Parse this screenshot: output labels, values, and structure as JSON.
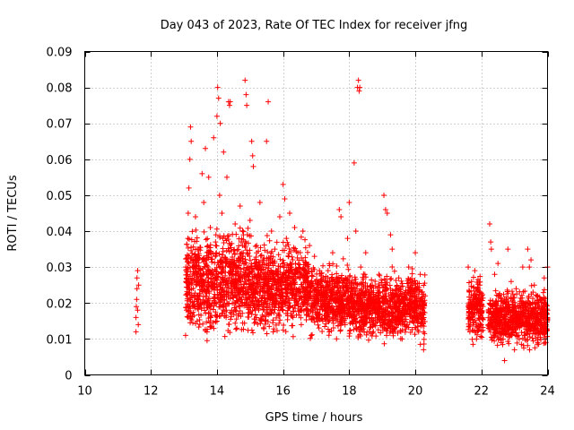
{
  "chart_data": {
    "type": "scatter",
    "title": "Day 043 of 2023, Rate Of TEC Index for receiver jfng",
    "xlabel": "GPS time / hours",
    "ylabel": "ROTI / TECUs",
    "xlim": [
      10,
      24
    ],
    "ylim": [
      0,
      0.09
    ],
    "xticks": [
      10,
      12,
      14,
      16,
      18,
      20,
      22,
      24
    ],
    "xtick_labels": [
      "10",
      "12",
      "14",
      "16",
      "18",
      "20",
      "22",
      "24"
    ],
    "yticks": [
      0,
      0.01,
      0.02,
      0.03,
      0.04,
      0.05,
      0.06,
      0.07,
      0.08,
      0.09
    ],
    "ytick_labels": [
      "0",
      "0.01",
      "0.02",
      "0.03",
      "0.04",
      "0.05",
      "0.06",
      "0.07",
      "0.08",
      "0.09"
    ],
    "grid": true,
    "marker": "+",
    "color": "#ff0000",
    "series": [
      {
        "name": "ROTI",
        "points": [
          [
            11.55,
            0.012
          ],
          [
            11.55,
            0.016
          ],
          [
            11.56,
            0.019
          ],
          [
            11.57,
            0.021
          ],
          [
            11.58,
            0.024
          ],
          [
            11.58,
            0.027
          ],
          [
            11.6,
            0.029
          ],
          [
            11.6,
            0.018
          ],
          [
            11.62,
            0.014
          ],
          [
            11.63,
            0.025
          ],
          [
            13.05,
            0.011
          ],
          [
            13.08,
            0.018
          ],
          [
            13.1,
            0.026
          ],
          [
            13.12,
            0.038
          ],
          [
            13.13,
            0.045
          ],
          [
            13.15,
            0.052
          ],
          [
            13.18,
            0.06
          ],
          [
            13.2,
            0.069
          ],
          [
            13.22,
            0.065
          ],
          [
            13.25,
            0.03
          ],
          [
            13.3,
            0.022
          ],
          [
            13.35,
            0.044
          ],
          [
            13.4,
            0.015
          ],
          [
            13.45,
            0.035
          ],
          [
            13.5,
            0.028
          ],
          [
            13.55,
            0.056
          ],
          [
            13.6,
            0.048
          ],
          [
            13.65,
            0.063
          ],
          [
            13.7,
            0.012
          ],
          [
            13.75,
            0.055
          ],
          [
            13.8,
            0.041
          ],
          [
            13.85,
            0.02
          ],
          [
            13.9,
            0.066
          ],
          [
            13.95,
            0.033
          ],
          [
            14.0,
            0.072
          ],
          [
            14.02,
            0.08
          ],
          [
            14.05,
            0.077
          ],
          [
            14.08,
            0.05
          ],
          [
            14.1,
            0.07
          ],
          [
            14.12,
            0.025
          ],
          [
            14.15,
            0.045
          ],
          [
            14.2,
            0.062
          ],
          [
            14.25,
            0.038
          ],
          [
            14.3,
            0.055
          ],
          [
            14.35,
            0.076
          ],
          [
            14.38,
            0.075
          ],
          [
            14.4,
            0.076
          ],
          [
            14.45,
            0.018
          ],
          [
            14.5,
            0.031
          ],
          [
            14.55,
            0.042
          ],
          [
            14.6,
            0.013
          ],
          [
            14.65,
            0.028
          ],
          [
            14.7,
            0.047
          ],
          [
            14.75,
            0.021
          ],
          [
            14.8,
            0.039
          ],
          [
            14.85,
            0.082
          ],
          [
            14.88,
            0.078
          ],
          [
            14.9,
            0.075
          ],
          [
            14.95,
            0.03
          ],
          [
            15.0,
            0.043
          ],
          [
            15.05,
            0.065
          ],
          [
            15.08,
            0.061
          ],
          [
            15.1,
            0.058
          ],
          [
            15.15,
            0.024
          ],
          [
            15.2,
            0.036
          ],
          [
            15.25,
            0.019
          ],
          [
            15.3,
            0.048
          ],
          [
            15.35,
            0.015
          ],
          [
            15.4,
            0.032
          ],
          [
            15.45,
            0.027
          ],
          [
            15.5,
            0.065
          ],
          [
            15.55,
            0.076
          ],
          [
            15.6,
            0.022
          ],
          [
            15.65,
            0.04
          ],
          [
            15.7,
            0.012
          ],
          [
            15.75,
            0.035
          ],
          [
            15.8,
            0.029
          ],
          [
            15.85,
            0.017
          ],
          [
            15.9,
            0.044
          ],
          [
            15.95,
            0.025
          ],
          [
            16.0,
            0.053
          ],
          [
            16.05,
            0.049
          ],
          [
            16.1,
            0.038
          ],
          [
            16.15,
            0.02
          ],
          [
            16.2,
            0.045
          ],
          [
            16.25,
            0.03
          ],
          [
            16.3,
            0.016
          ],
          [
            16.35,
            0.041
          ],
          [
            16.4,
            0.022
          ],
          [
            16.45,
            0.034
          ],
          [
            16.5,
            0.027
          ],
          [
            16.55,
            0.014
          ],
          [
            16.6,
            0.04
          ],
          [
            16.65,
            0.023
          ],
          [
            16.7,
            0.031
          ],
          [
            16.75,
            0.018
          ],
          [
            16.8,
            0.036
          ],
          [
            16.85,
            0.011
          ],
          [
            16.9,
            0.025
          ],
          [
            16.95,
            0.033
          ],
          [
            17.0,
            0.02
          ],
          [
            17.1,
            0.029
          ],
          [
            17.2,
            0.015
          ],
          [
            17.3,
            0.026
          ],
          [
            17.4,
            0.012
          ],
          [
            17.5,
            0.034
          ],
          [
            17.6,
            0.02
          ],
          [
            17.7,
            0.046
          ],
          [
            17.75,
            0.044
          ],
          [
            17.8,
            0.018
          ],
          [
            17.9,
            0.027
          ],
          [
            17.95,
            0.038
          ],
          [
            18.0,
            0.048
          ],
          [
            18.05,
            0.022
          ],
          [
            18.1,
            0.015
          ],
          [
            18.15,
            0.059
          ],
          [
            18.2,
            0.04
          ],
          [
            18.25,
            0.08
          ],
          [
            18.28,
            0.082
          ],
          [
            18.3,
            0.079
          ],
          [
            18.32,
            0.08
          ],
          [
            18.35,
            0.03
          ],
          [
            18.4,
            0.019
          ],
          [
            18.5,
            0.034
          ],
          [
            18.6,
            0.012
          ],
          [
            18.7,
            0.025
          ],
          [
            18.8,
            0.017
          ],
          [
            18.9,
            0.028
          ],
          [
            19.0,
            0.014
          ],
          [
            19.05,
            0.05
          ],
          [
            19.1,
            0.046
          ],
          [
            19.15,
            0.045
          ],
          [
            19.2,
            0.022
          ],
          [
            19.25,
            0.039
          ],
          [
            19.3,
            0.035
          ],
          [
            19.4,
            0.015
          ],
          [
            19.5,
            0.027
          ],
          [
            19.6,
            0.01
          ],
          [
            19.7,
            0.021
          ],
          [
            19.8,
            0.03
          ],
          [
            19.9,
            0.016
          ],
          [
            20.0,
            0.034
          ],
          [
            20.05,
            0.024
          ],
          [
            20.1,
            0.012
          ],
          [
            20.15,
            0.028
          ],
          [
            20.2,
            0.019
          ],
          [
            20.25,
            0.007
          ],
          [
            20.3,
            0.022
          ],
          [
            21.6,
            0.03
          ],
          [
            21.62,
            0.02
          ],
          [
            21.65,
            0.012
          ],
          [
            21.7,
            0.026
          ],
          [
            21.72,
            0.016
          ],
          [
            21.75,
            0.022
          ],
          [
            21.8,
            0.029
          ],
          [
            21.85,
            0.01
          ],
          [
            21.9,
            0.018
          ],
          [
            21.95,
            0.025
          ],
          [
            22.0,
            0.014
          ],
          [
            22.25,
            0.042
          ],
          [
            22.28,
            0.037
          ],
          [
            22.3,
            0.035
          ],
          [
            22.35,
            0.019
          ],
          [
            22.4,
            0.028
          ],
          [
            22.45,
            0.012
          ],
          [
            22.5,
            0.031
          ],
          [
            22.55,
            0.022
          ],
          [
            22.6,
            0.009
          ],
          [
            22.65,
            0.016
          ],
          [
            22.7,
            0.004
          ],
          [
            22.75,
            0.021
          ],
          [
            22.8,
            0.035
          ],
          [
            22.85,
            0.013
          ],
          [
            22.9,
            0.026
          ],
          [
            22.95,
            0.018
          ],
          [
            23.0,
            0.007
          ],
          [
            23.05,
            0.024
          ],
          [
            23.1,
            0.015
          ],
          [
            23.2,
            0.02
          ],
          [
            23.25,
            0.03
          ],
          [
            23.3,
            0.011
          ],
          [
            23.4,
            0.035
          ],
          [
            23.45,
            0.03
          ],
          [
            23.5,
            0.032
          ],
          [
            23.55,
            0.017
          ],
          [
            23.6,
            0.025
          ],
          [
            23.7,
            0.009
          ],
          [
            23.8,
            0.021
          ],
          [
            23.85,
            0.013
          ],
          [
            23.9,
            0.027
          ],
          [
            23.95,
            0.009
          ],
          [
            24.0,
            0.03
          ],
          [
            24.0,
            0.018
          ]
        ],
        "bands": [
          {
            "x_start": 13.05,
            "x_end": 15.0,
            "y_min": 0.008,
            "y_max": 0.045
          },
          {
            "x_start": 15.0,
            "x_end": 16.8,
            "y_min": 0.009,
            "y_max": 0.04
          },
          {
            "x_start": 16.8,
            "x_end": 18.0,
            "y_min": 0.009,
            "y_max": 0.033
          },
          {
            "x_start": 18.0,
            "x_end": 20.3,
            "y_min": 0.007,
            "y_max": 0.031
          },
          {
            "x_start": 21.6,
            "x_end": 22.05,
            "y_min": 0.008,
            "y_max": 0.029
          },
          {
            "x_start": 22.2,
            "x_end": 24.0,
            "y_min": 0.006,
            "y_max": 0.026
          }
        ]
      }
    ]
  }
}
